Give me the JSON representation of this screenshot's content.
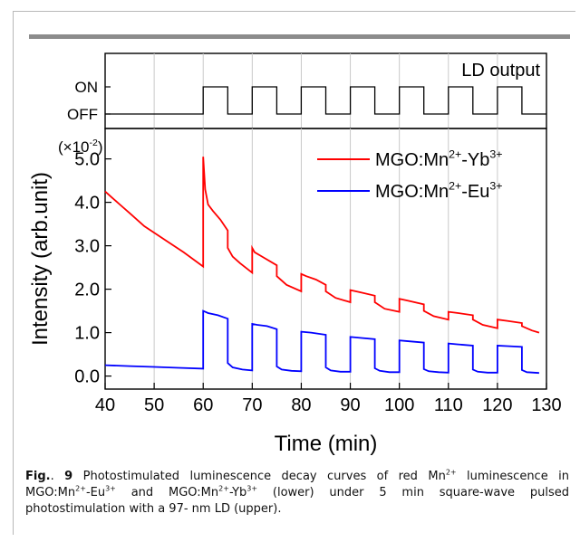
{
  "chart_data": [
    {
      "type": "line",
      "panel": "upper",
      "ytick_labels": [
        "ON",
        "OFF"
      ],
      "legend": "LD output",
      "series": [
        {
          "name": "LD output",
          "x": [
            40,
            60,
            60,
            65,
            65,
            70,
            70,
            75,
            75,
            80,
            80,
            85,
            85,
            90,
            90,
            95,
            95,
            100,
            100,
            105,
            105,
            110,
            110,
            115,
            115,
            120,
            120,
            125,
            125,
            130
          ],
          "y": [
            0,
            0,
            1,
            1,
            0,
            0,
            1,
            1,
            0,
            0,
            1,
            1,
            0,
            0,
            1,
            1,
            0,
            0,
            1,
            1,
            0,
            0,
            1,
            1,
            0,
            0,
            1,
            1,
            0,
            0
          ]
        }
      ],
      "xlim": [
        40,
        130
      ],
      "grid": "vertical",
      "legend_position": "top-right"
    },
    {
      "type": "line",
      "panel": "lower",
      "xlabel": "Time (min)",
      "ylabel": "Intensity (arb.unit)",
      "y_scale_label": "(×10",
      "y_scale_exp": "-2",
      "y_scale_close": ")",
      "xlim": [
        40,
        130
      ],
      "ylim": [
        -0.3,
        5.7
      ],
      "xticks": [
        40,
        50,
        60,
        70,
        80,
        90,
        100,
        110,
        120,
        130
      ],
      "yticks": [
        0.0,
        1.0,
        2.0,
        3.0,
        4.0,
        5.0
      ],
      "ytick_labels": [
        "0.0",
        "1.0",
        "2.0",
        "3.0",
        "4.0",
        "5.0"
      ],
      "grid": "vertical",
      "legend_position": "top-right",
      "series": [
        {
          "name_parts": [
            "MGO:Mn",
            "2+",
            "-Yb",
            "3+"
          ],
          "color": "#ff0000",
          "points": [
            [
              40,
              4.25
            ],
            [
              41,
              4.15
            ],
            [
              43,
              3.95
            ],
            [
              45,
              3.75
            ],
            [
              48,
              3.45
            ],
            [
              52,
              3.15
            ],
            [
              56,
              2.85
            ],
            [
              60,
              2.52
            ],
            [
              60,
              5.05
            ],
            [
              60.4,
              4.3
            ],
            [
              61,
              3.95
            ],
            [
              62,
              3.8
            ],
            [
              63.5,
              3.6
            ],
            [
              65,
              3.35
            ],
            [
              65,
              2.95
            ],
            [
              66,
              2.75
            ],
            [
              67.5,
              2.6
            ],
            [
              70,
              2.38
            ],
            [
              70,
              2.95
            ],
            [
              70.5,
              2.85
            ],
            [
              72,
              2.75
            ],
            [
              75,
              2.55
            ],
            [
              75,
              2.3
            ],
            [
              77,
              2.1
            ],
            [
              80,
              1.95
            ],
            [
              80,
              2.35
            ],
            [
              81,
              2.3
            ],
            [
              83,
              2.22
            ],
            [
              85,
              2.1
            ],
            [
              85,
              1.95
            ],
            [
              87,
              1.8
            ],
            [
              90,
              1.7
            ],
            [
              90,
              1.98
            ],
            [
              92,
              1.93
            ],
            [
              95,
              1.85
            ],
            [
              95,
              1.7
            ],
            [
              97,
              1.55
            ],
            [
              100,
              1.48
            ],
            [
              100,
              1.78
            ],
            [
              102,
              1.73
            ],
            [
              105,
              1.65
            ],
            [
              105,
              1.5
            ],
            [
              107,
              1.38
            ],
            [
              110,
              1.3
            ],
            [
              110,
              1.48
            ],
            [
              112,
              1.45
            ],
            [
              115,
              1.4
            ],
            [
              115,
              1.3
            ],
            [
              117,
              1.18
            ],
            [
              120,
              1.1
            ],
            [
              120,
              1.3
            ],
            [
              122,
              1.27
            ],
            [
              125,
              1.22
            ],
            [
              125,
              1.15
            ],
            [
              127,
              1.05
            ],
            [
              128.5,
              1.0
            ]
          ]
        },
        {
          "name_parts": [
            "MGO:Mn",
            "2+",
            "-Eu",
            "3+"
          ],
          "color": "#0000ff",
          "points": [
            [
              40,
              0.25
            ],
            [
              45,
              0.23
            ],
            [
              50,
              0.21
            ],
            [
              55,
              0.19
            ],
            [
              60,
              0.17
            ],
            [
              60,
              1.5
            ],
            [
              61,
              1.45
            ],
            [
              63,
              1.4
            ],
            [
              65,
              1.32
            ],
            [
              65,
              0.3
            ],
            [
              66,
              0.2
            ],
            [
              68,
              0.15
            ],
            [
              70,
              0.13
            ],
            [
              70,
              1.2
            ],
            [
              71,
              1.18
            ],
            [
              73,
              1.15
            ],
            [
              75,
              1.08
            ],
            [
              75,
              0.22
            ],
            [
              76,
              0.15
            ],
            [
              78,
              0.12
            ],
            [
              80,
              0.11
            ],
            [
              80,
              1.02
            ],
            [
              82,
              1.0
            ],
            [
              85,
              0.95
            ],
            [
              85,
              0.2
            ],
            [
              86,
              0.13
            ],
            [
              88,
              0.1
            ],
            [
              90,
              0.1
            ],
            [
              90,
              0.9
            ],
            [
              92,
              0.88
            ],
            [
              95,
              0.85
            ],
            [
              95,
              0.18
            ],
            [
              96,
              0.12
            ],
            [
              98,
              0.09
            ],
            [
              100,
              0.09
            ],
            [
              100,
              0.82
            ],
            [
              102,
              0.8
            ],
            [
              105,
              0.77
            ],
            [
              105,
              0.16
            ],
            [
              106,
              0.11
            ],
            [
              108,
              0.09
            ],
            [
              110,
              0.08
            ],
            [
              110,
              0.75
            ],
            [
              112,
              0.73
            ],
            [
              115,
              0.7
            ],
            [
              115,
              0.15
            ],
            [
              116,
              0.1
            ],
            [
              118,
              0.08
            ],
            [
              120,
              0.08
            ],
            [
              120,
              0.7
            ],
            [
              122,
              0.69
            ],
            [
              125,
              0.67
            ],
            [
              125,
              0.14
            ],
            [
              126,
              0.09
            ],
            [
              128.5,
              0.07
            ]
          ]
        }
      ]
    }
  ],
  "caption": {
    "fig_label": "Fig.",
    "fig_sep": ". ",
    "fig_number": "9",
    "text_1": " Photostimulated luminescence decay curves of red Mn",
    "sup_1": "2+",
    "text_2": " luminescence in MGO:Mn",
    "sup_2": "2+",
    "text_3": "-Eu",
    "sup_3": "3+",
    "text_4": " and MGO:Mn",
    "sup_4": "2+",
    "text_5": "-Yb",
    "sup_5": "3+",
    "text_6": " (lower) under 5 min square-wave pulsed photostimulation with a 97- nm LD (upper)."
  }
}
